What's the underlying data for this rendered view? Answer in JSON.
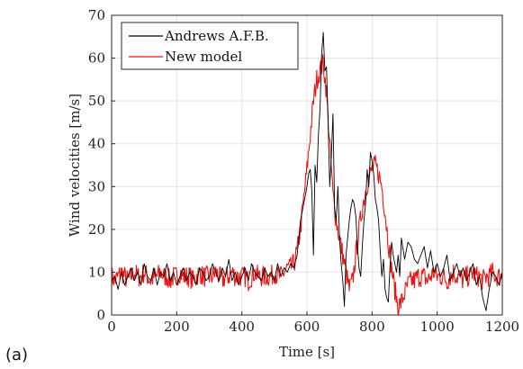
{
  "panel_label": "(a)",
  "chart_data": {
    "type": "line",
    "title": "",
    "xlabel": "Time [s]",
    "ylabel": "Wind velocities [m/s]",
    "xlim": [
      0,
      1200
    ],
    "ylim": [
      0,
      70
    ],
    "xticks": [
      0,
      200,
      400,
      600,
      800,
      1000,
      1200
    ],
    "yticks": [
      0,
      10,
      20,
      30,
      40,
      50,
      60,
      70
    ],
    "grid": true,
    "legend_position": "top-left",
    "series": [
      {
        "name": "Andrews A.F.B.",
        "color": "#000000",
        "x": [
          0,
          10,
          20,
          30,
          40,
          50,
          60,
          70,
          80,
          90,
          100,
          110,
          120,
          130,
          140,
          150,
          160,
          170,
          180,
          190,
          200,
          210,
          220,
          230,
          240,
          250,
          260,
          270,
          280,
          290,
          300,
          310,
          320,
          330,
          340,
          350,
          360,
          370,
          380,
          390,
          400,
          410,
          420,
          430,
          440,
          450,
          460,
          470,
          480,
          490,
          500,
          510,
          520,
          530,
          540,
          550,
          560,
          570,
          575,
          580,
          590,
          600,
          605,
          610,
          615,
          620,
          625,
          630,
          635,
          640,
          645,
          650,
          655,
          660,
          665,
          670,
          675,
          680,
          685,
          690,
          695,
          700,
          705,
          710,
          715,
          720,
          725,
          730,
          735,
          740,
          745,
          750,
          755,
          760,
          765,
          770,
          775,
          780,
          785,
          790,
          795,
          800,
          805,
          810,
          815,
          820,
          825,
          830,
          835,
          840,
          845,
          850,
          855,
          860,
          865,
          870,
          875,
          880,
          885,
          890,
          900,
          910,
          920,
          930,
          940,
          950,
          960,
          970,
          980,
          990,
          1000,
          1010,
          1020,
          1030,
          1040,
          1050,
          1060,
          1070,
          1080,
          1090,
          1100,
          1110,
          1120,
          1130,
          1140,
          1150,
          1160,
          1170,
          1180,
          1190,
          1200
        ],
        "y": [
          8,
          9,
          6,
          10,
          7,
          9,
          11,
          8,
          10,
          7,
          12,
          9,
          8,
          11,
          7,
          10,
          9,
          12,
          8,
          10,
          7,
          9,
          11,
          8,
          10,
          9,
          7,
          11,
          10,
          8,
          9,
          12,
          10,
          8,
          11,
          9,
          13,
          8,
          10,
          7,
          9,
          11,
          8,
          12,
          10,
          9,
          8,
          11,
          9,
          10,
          8,
          12,
          9,
          11,
          10,
          12,
          11,
          14,
          18,
          22,
          26,
          30,
          33,
          34,
          29,
          14,
          35,
          31,
          42,
          48,
          61,
          66,
          57,
          58,
          45,
          30,
          37,
          47,
          25,
          22,
          30,
          18,
          12,
          8,
          2,
          14,
          18,
          22,
          25,
          27,
          26,
          23,
          16,
          11,
          9,
          16,
          22,
          26,
          34,
          30,
          38,
          36,
          33,
          27,
          25,
          22,
          15,
          9,
          13,
          6,
          4,
          3,
          11,
          17,
          14,
          12,
          10,
          14,
          9,
          18,
          13,
          17,
          16,
          13,
          12,
          14,
          16,
          11,
          15,
          10,
          12,
          9,
          11,
          14,
          8,
          10,
          12,
          9,
          11,
          8,
          10,
          12,
          7,
          9,
          4,
          1,
          6,
          10,
          9,
          7,
          10
        ]
      },
      {
        "name": "New model",
        "color": "#ee1111",
        "x": [
          0,
          10,
          20,
          30,
          40,
          50,
          60,
          70,
          80,
          90,
          100,
          110,
          120,
          130,
          140,
          150,
          160,
          170,
          180,
          190,
          200,
          210,
          220,
          230,
          240,
          250,
          260,
          270,
          280,
          290,
          300,
          310,
          320,
          330,
          340,
          350,
          360,
          370,
          380,
          390,
          400,
          410,
          420,
          430,
          440,
          450,
          460,
          470,
          480,
          490,
          500,
          510,
          520,
          530,
          540,
          550,
          560,
          570,
          580,
          590,
          600,
          610,
          620,
          630,
          640,
          650,
          660,
          670,
          680,
          690,
          700,
          710,
          720,
          730,
          740,
          750,
          760,
          770,
          780,
          790,
          800,
          810,
          820,
          830,
          840,
          850,
          860,
          870,
          880,
          890,
          900,
          910,
          920,
          930,
          940,
          950,
          960,
          970,
          980,
          990,
          1000,
          1010,
          1020,
          1030,
          1040,
          1050,
          1060,
          1070,
          1080,
          1090,
          1100,
          1110,
          1120,
          1130,
          1140,
          1150,
          1160,
          1170,
          1180,
          1190,
          1200
        ],
        "y": [
          9,
          8,
          9,
          10,
          9,
          8,
          9,
          10,
          9,
          9,
          10,
          9,
          8,
          9,
          9,
          10,
          9,
          9,
          8,
          9,
          9,
          10,
          9,
          9,
          9,
          8,
          9,
          10,
          9,
          9,
          9,
          9,
          10,
          9,
          8,
          9,
          9,
          10,
          9,
          9,
          9,
          9,
          8,
          9,
          10,
          9,
          9,
          9,
          9,
          9,
          10,
          9,
          9,
          10,
          11,
          11,
          12,
          15,
          20,
          27,
          34,
          42,
          50,
          55,
          57,
          59,
          52,
          40,
          28,
          22,
          18,
          14,
          10,
          6,
          8,
          14,
          20,
          25,
          29,
          32,
          34,
          35,
          33,
          30,
          24,
          17,
          11,
          6,
          2,
          3,
          5,
          7,
          8,
          8,
          9,
          9,
          9,
          8,
          9,
          10,
          9,
          9,
          9,
          8,
          9,
          10,
          9,
          9,
          8,
          9,
          9,
          10,
          9,
          9,
          8,
          9,
          9,
          10,
          9,
          9,
          9
        ]
      }
    ]
  }
}
